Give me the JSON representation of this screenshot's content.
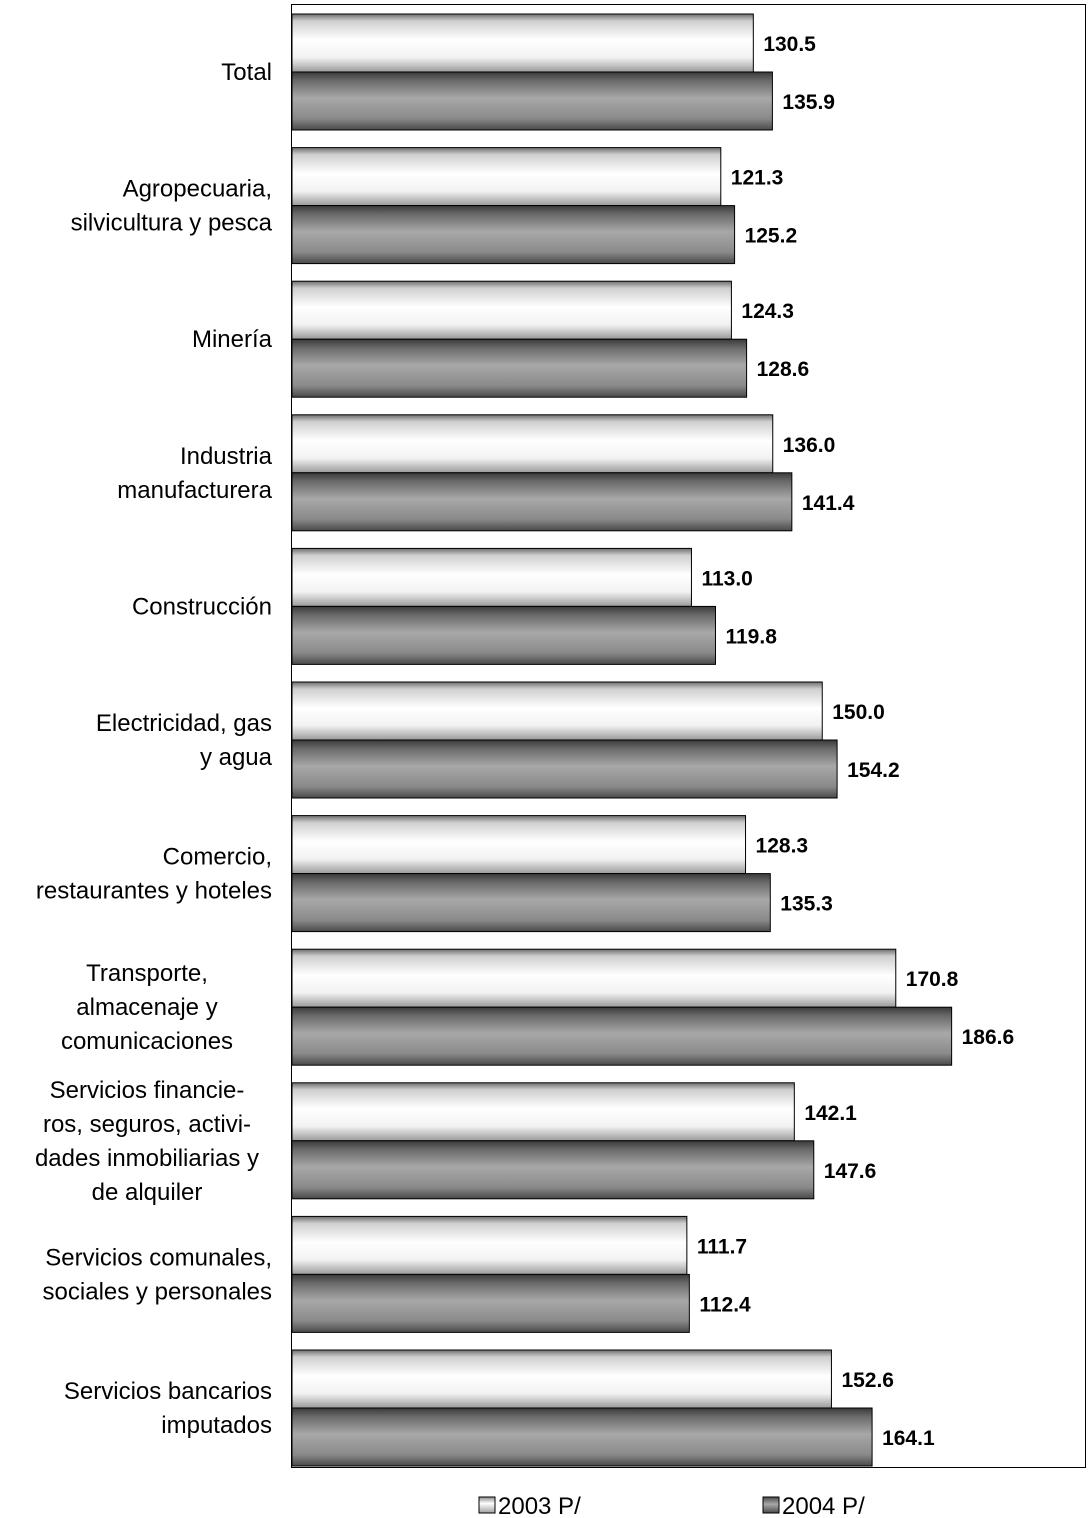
{
  "chart_data": {
    "type": "bar",
    "orientation": "horizontal",
    "categories": [
      [
        "Total"
      ],
      [
        "Agropecuaria,",
        "silvicultura y pesca"
      ],
      [
        "Minería"
      ],
      [
        "Industria",
        "manufacturera"
      ],
      [
        "Construcción"
      ],
      [
        "Electricidad, gas",
        "y agua"
      ],
      [
        "Comercio,",
        "restaurantes y hoteles"
      ],
      [
        "Transporte,",
        "almacenaje y",
        "comunicaciones"
      ],
      [
        "Servicios  financie-",
        "ros, seguros, activi-",
        "dades inmobiliarias y",
        "de alquiler"
      ],
      [
        "Servicios comunales,",
        "sociales y personales"
      ],
      [
        "Servicios bancarios",
        "imputados"
      ]
    ],
    "series": [
      {
        "name": "2003 P/",
        "values": [
          130.5,
          121.3,
          124.3,
          136.0,
          113.0,
          150.0,
          128.3,
          170.8,
          142.1,
          111.7,
          152.6
        ],
        "labels": [
          "130.5",
          "121.3",
          "124.3",
          "136.0",
          "113.0",
          "150.0",
          "128.3",
          "170.8",
          "142.1",
          "111.7",
          "152.6"
        ],
        "fill": "#ffffff"
      },
      {
        "name": "2004 P/",
        "values": [
          135.9,
          125.2,
          128.6,
          141.4,
          119.8,
          154.2,
          135.3,
          186.6,
          147.6,
          112.4,
          164.1
        ],
        "labels": [
          "135.9",
          "125.2",
          "128.6",
          "141.4",
          "119.8",
          "154.2",
          "135.3",
          "186.6",
          "147.6",
          "112.4",
          "164.1"
        ],
        "fill": "#8c8c8c"
      }
    ],
    "xlim": [
      0,
      200
    ],
    "grid": false,
    "legend_position": "bottom"
  }
}
